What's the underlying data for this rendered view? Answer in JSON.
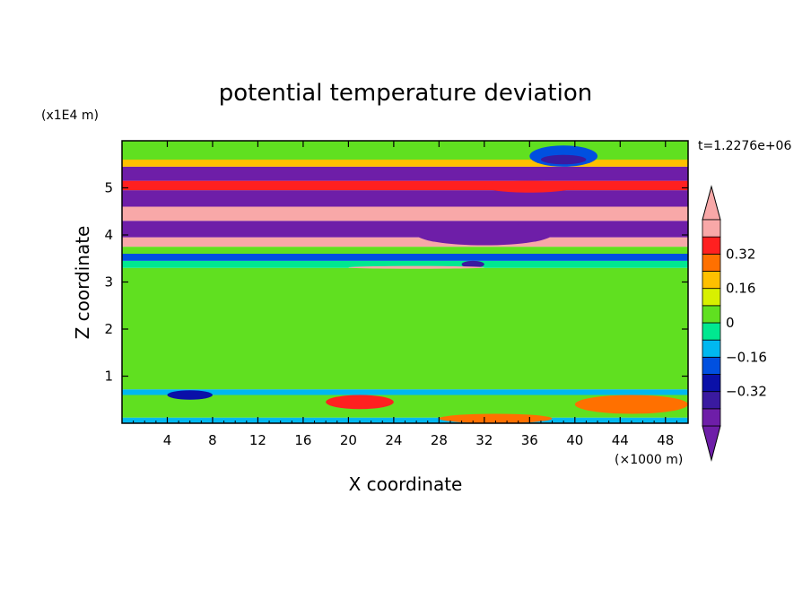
{
  "chart_data": {
    "type": "heatmap",
    "title": "potential temperature deviation",
    "xlabel": "X coordinate",
    "ylabel": "Z coordinate",
    "x_unit": "(×1000 m)",
    "y_unit": "(x1E4 m)",
    "time_label": "t=1.2276e+06",
    "xlim": [
      0,
      50
    ],
    "ylim": [
      0,
      6
    ],
    "x_ticks": [
      4,
      8,
      12,
      16,
      20,
      24,
      28,
      32,
      36,
      40,
      44,
      48
    ],
    "y_ticks": [
      1,
      2,
      3,
      4,
      5
    ],
    "colorbar": {
      "levels": [
        -0.48,
        -0.4,
        -0.32,
        -0.24,
        -0.16,
        -0.08,
        0,
        0.08,
        0.16,
        0.24,
        0.32,
        0.4
      ],
      "colors": [
        "#6e1ea8",
        "#3a1aa0",
        "#0a10a8",
        "#0050e0",
        "#00b8f0",
        "#00e890",
        "#60e020",
        "#d8f000",
        "#ffc000",
        "#ff7000",
        "#ff2020",
        "#f8a8a8"
      ],
      "labels": [
        "-0.32",
        "-0.16",
        "0",
        "0.16",
        "0.32"
      ],
      "label_values": [
        -0.32,
        -0.16,
        0,
        0.16,
        0.32
      ]
    },
    "bands": [
      {
        "z": [
          0.0,
          0.12
        ],
        "value": -0.1
      },
      {
        "z": [
          0.12,
          0.6
        ],
        "value": 0.0
      },
      {
        "z": [
          0.6,
          0.72
        ],
        "value": -0.14
      },
      {
        "z": [
          0.72,
          3.3
        ],
        "value": 0.03
      },
      {
        "z": [
          3.3,
          3.45
        ],
        "value": -0.08
      },
      {
        "z": [
          3.45,
          3.6
        ],
        "value": -0.2
      },
      {
        "z": [
          3.6,
          3.75
        ],
        "value": 0.05
      },
      {
        "z": [
          3.75,
          3.95
        ],
        "value": 0.4
      },
      {
        "z": [
          3.95,
          4.3
        ],
        "value": -0.45
      },
      {
        "z": [
          4.3,
          4.6
        ],
        "value": 0.42
      },
      {
        "z": [
          4.6,
          4.95
        ],
        "value": -0.44
      },
      {
        "z": [
          4.95,
          5.15
        ],
        "value": 0.38
      },
      {
        "z": [
          5.15,
          5.45
        ],
        "value": -0.45
      },
      {
        "z": [
          5.45,
          5.6
        ],
        "value": 0.2
      },
      {
        "z": [
          5.6,
          6.0
        ],
        "value": 0.02
      }
    ],
    "features": [
      {
        "x": [
          30,
          32
        ],
        "z": [
          3.3,
          3.45
        ],
        "value": -0.4
      },
      {
        "x": [
          20,
          32
        ],
        "z": [
          3.28,
          3.34
        ],
        "value": 0.4
      },
      {
        "x": [
          36,
          42
        ],
        "z": [
          5.45,
          5.9
        ],
        "value": -0.2
      },
      {
        "x": [
          37,
          41
        ],
        "z": [
          5.5,
          5.7
        ],
        "value": -0.4
      },
      {
        "x": [
          26,
          38
        ],
        "z": [
          3.78,
          4.25
        ],
        "value": -0.46
      },
      {
        "x": [
          18,
          24
        ],
        "z": [
          0.3,
          0.6
        ],
        "value": 0.32
      },
      {
        "x": [
          28,
          38
        ],
        "z": [
          0.0,
          0.2
        ],
        "value": 0.24
      },
      {
        "x": [
          40,
          50
        ],
        "z": [
          0.2,
          0.6
        ],
        "value": 0.24
      },
      {
        "x": [
          4,
          8
        ],
        "z": [
          0.5,
          0.7
        ],
        "value": -0.32
      },
      {
        "x": [
          32,
          40
        ],
        "z": [
          4.9,
          5.15
        ],
        "value": 0.32
      }
    ]
  }
}
